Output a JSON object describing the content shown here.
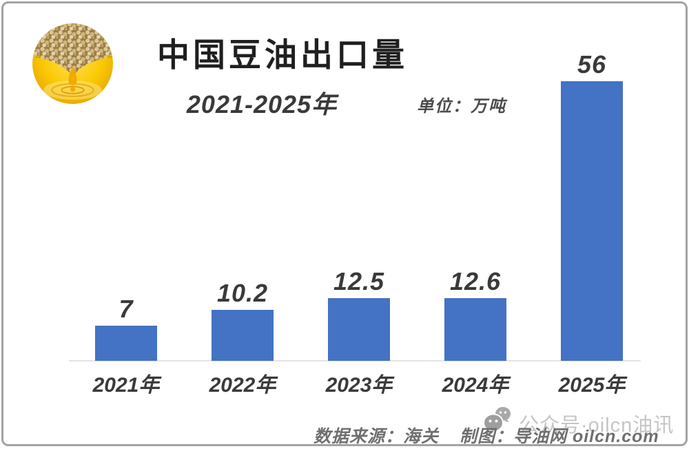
{
  "header": {
    "title": "中国豆油出口量",
    "subtitle": "2021-2025年",
    "unit_label": "单位：万吨"
  },
  "chart_data": {
    "type": "bar",
    "categories": [
      "2021年",
      "2022年",
      "2023年",
      "2024年",
      "2025年"
    ],
    "values": [
      7,
      10.2,
      12.5,
      12.6,
      56
    ],
    "title": "中国豆油出口量",
    "subtitle": "2021-2025年",
    "unit": "万吨",
    "xlabel": "",
    "ylabel": "",
    "ylim": [
      0,
      58
    ],
    "grid": false,
    "legend": false,
    "value_labels_shown": true,
    "bar_color": "#4472c4",
    "label_color": "#3a3a3a",
    "axis_line_color": "#e3e3e3"
  },
  "footer": {
    "source_label": "数据来源：海关",
    "credit_label": "制图：导油网 oilcn.com"
  },
  "watermark": {
    "text": "公众号·oilcn油讯",
    "icon": "wechat-icon",
    "color": "#c5c5c5"
  },
  "branding": {
    "logo_icon": "soybean-oil-logo"
  },
  "colors": {
    "frame_border": "#a3a3a3",
    "background": "#ffffff",
    "title_text": "#1f1f1f",
    "footer_text": "#6f6f6f"
  }
}
